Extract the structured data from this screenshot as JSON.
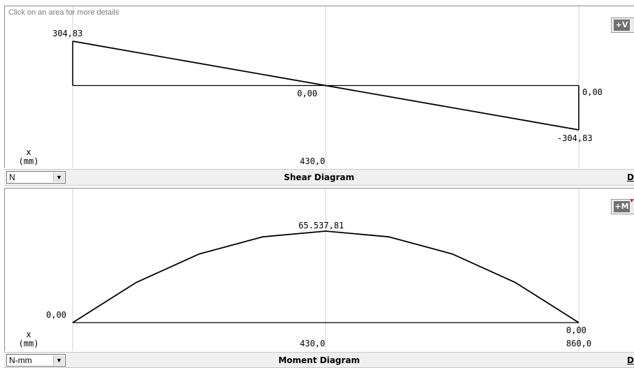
{
  "shear": {
    "hint": "Click on an area for more details",
    "button_label": "+V",
    "unit": "N",
    "title": "Shear Diagram",
    "right_cut_label": "D",
    "axis_symbol": "x",
    "axis_unit": "(mm)"
  },
  "moment": {
    "button_label": "+M",
    "unit": "N-mm",
    "title": "Moment Diagram",
    "right_cut_label": "D",
    "axis_symbol": "x",
    "axis_unit": "(mm)"
  },
  "chart_data": [
    {
      "type": "line",
      "title": "Shear Diagram",
      "ylabel": "N",
      "xlabel": "x (mm)",
      "x": [
        0,
        860
      ],
      "y": [
        304.83,
        -304.83
      ],
      "xlim": [
        0,
        860
      ],
      "ylim": [
        -304.83,
        304.83
      ],
      "grid": true,
      "labels": {
        "start": "304,83",
        "zero_mid": "0,00",
        "zero_end": "0,00",
        "end": "-304,83",
        "x_mid": "430,0"
      }
    },
    {
      "type": "line",
      "title": "Moment Diagram",
      "ylabel": "N-mm",
      "xlabel": "x (mm)",
      "x": [
        0,
        107.5,
        215,
        322.5,
        430,
        537.5,
        645,
        752.5,
        860
      ],
      "y": [
        0,
        28672.79,
        49153.36,
        61441.7,
        65537.81,
        61441.7,
        49153.36,
        28672.79,
        0
      ],
      "xlim": [
        0,
        860
      ],
      "ylim": [
        0,
        65537.81
      ],
      "grid": true,
      "labels": {
        "max": "65.537,81",
        "start": "0,00",
        "end": "0,00",
        "x_mid": "430,0",
        "x_end": "860,0"
      }
    }
  ]
}
